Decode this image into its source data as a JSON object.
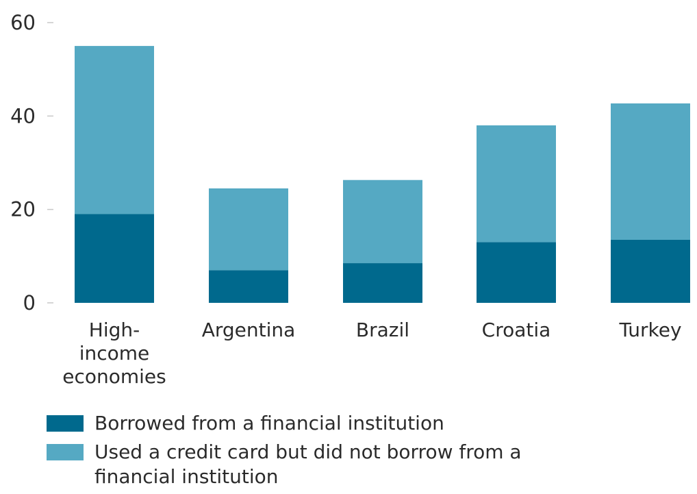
{
  "chart_data": {
    "type": "bar",
    "stacked": true,
    "categories": [
      "High-income economies",
      "Argentina",
      "Brazil",
      "Croatia",
      "Turkey"
    ],
    "category_label_lines": [
      [
        "High-",
        "income",
        "economies"
      ],
      [
        "Argentina"
      ],
      [
        "Brazil"
      ],
      [
        "Croatia"
      ],
      [
        "Turkey"
      ]
    ],
    "series": [
      {
        "name": "Borrowed from a financial institution",
        "color": "#00698d",
        "values": [
          19,
          7,
          8.5,
          13,
          13.5
        ]
      },
      {
        "name": "Used a credit card but did not borrow from a financial institution",
        "color": "#55a9c3",
        "values": [
          36,
          17.5,
          17.8,
          25,
          29.2
        ]
      }
    ],
    "ylim": [
      0,
      60
    ],
    "yticks": [
      0,
      20,
      40,
      60
    ],
    "ytick_labels": [
      "0",
      "20",
      "40",
      "60"
    ],
    "title": "",
    "xlabel": "",
    "ylabel": "",
    "grid": false,
    "legend_position": "bottom-left"
  }
}
